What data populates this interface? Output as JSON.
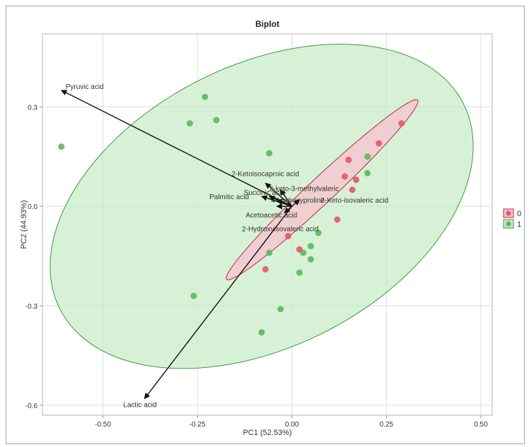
{
  "chart_data": {
    "type": "scatter",
    "title": "Biplot",
    "xlabel": "PC1 (52.53%)",
    "ylabel": "PC2 (44.93%)",
    "xlim": [
      -0.66,
      0.53
    ],
    "ylim": [
      -0.63,
      0.52
    ],
    "x_ticks": [
      -0.5,
      -0.25,
      0.0,
      0.25,
      0.5
    ],
    "x_tick_labels": [
      "-0.50",
      "-0.25",
      "0.00",
      "0.25",
      "0.50"
    ],
    "y_ticks": [
      -0.6,
      -0.3,
      0.0,
      0.3
    ],
    "y_tick_labels": [
      "-0.6",
      "-0.3",
      "0.0",
      "0.3"
    ],
    "grid": true,
    "legend_position": "right",
    "series": [
      {
        "name": "0",
        "color": "#e8536b",
        "ellipse_fill": "#f7c3cf",
        "ellipse_stroke": "#b8284a",
        "ellipse": {
          "center": [
            0.08,
            0.05
          ],
          "semi_major": 0.37,
          "semi_minor": 0.036,
          "angle_deg": 47
        },
        "points": [
          [
            0.29,
            0.25
          ],
          [
            0.23,
            0.19
          ],
          [
            0.15,
            0.14
          ],
          [
            0.14,
            0.09
          ],
          [
            0.17,
            0.08
          ],
          [
            0.16,
            0.05
          ],
          [
            0.12,
            -0.04
          ],
          [
            -0.01,
            -0.09
          ],
          [
            0.02,
            -0.13
          ],
          [
            -0.07,
            -0.19
          ]
        ]
      },
      {
        "name": "1",
        "color": "#5cb85c",
        "ellipse_fill": "#c6ebc6",
        "ellipse_stroke": "#3a9a3a",
        "ellipse": {
          "center": [
            -0.08,
            0.0
          ],
          "semi_major": 0.62,
          "semi_minor": 0.41,
          "angle_deg": 35
        },
        "points": [
          [
            -0.61,
            0.18
          ],
          [
            -0.23,
            0.33
          ],
          [
            -0.27,
            0.25
          ],
          [
            -0.2,
            0.26
          ],
          [
            -0.06,
            0.16
          ],
          [
            0.2,
            0.15
          ],
          [
            0.2,
            0.1
          ],
          [
            0.07,
            -0.08
          ],
          [
            0.05,
            -0.12
          ],
          [
            0.03,
            -0.14
          ],
          [
            0.05,
            -0.16
          ],
          [
            -0.06,
            -0.14
          ],
          [
            0.02,
            -0.2
          ],
          [
            -0.26,
            -0.27
          ],
          [
            -0.03,
            -0.31
          ],
          [
            -0.08,
            -0.38
          ]
        ]
      }
    ],
    "loadings": [
      {
        "label": "Pyruvic acid",
        "x": -0.61,
        "y": 0.35
      },
      {
        "label": "Lactic acid",
        "x": -0.39,
        "y": -0.58
      },
      {
        "label": "2-Ketoisocaproic acid",
        "x": -0.07,
        "y": 0.07
      },
      {
        "label": "2-keto-3-methylvaleric",
        "x": -0.03,
        "y": 0.05
      },
      {
        "label": "Succinic acid",
        "x": -0.06,
        "y": 0.03
      },
      {
        "label": "4-Hydroxyproline",
        "x": -0.04,
        "y": 0.02
      },
      {
        "label": "Palmitic acid",
        "x": -0.08,
        "y": 0.03
      },
      {
        "label": "Acetoacetic acid",
        "x": -0.04,
        "y": 0.0
      },
      {
        "label": "2-Keto-isovaleric acid",
        "x": 0.02,
        "y": 0.02
      },
      {
        "label": "2-Hydroxyisovaleric acid",
        "x": -0.02,
        "y": -0.02
      }
    ]
  }
}
